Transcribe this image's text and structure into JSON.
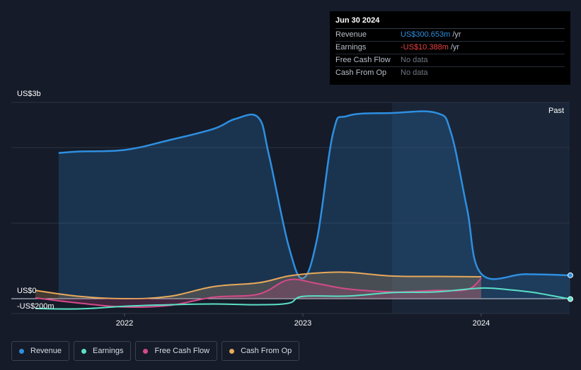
{
  "tooltip": {
    "date": "Jun 30 2024",
    "rows": [
      {
        "label": "Revenue",
        "value": "US$300.653m",
        "unit": "/yr",
        "color": "#2e8fe0"
      },
      {
        "label": "Earnings",
        "value": "-US$10.388m",
        "unit": "/yr",
        "color": "#e8413f"
      },
      {
        "label": "Free Cash Flow",
        "value": "No data",
        "unit": "",
        "color": "#6f7683"
      },
      {
        "label": "Cash From Op",
        "value": "No data",
        "unit": "",
        "color": "#6f7683"
      }
    ]
  },
  "legend": [
    {
      "label": "Revenue",
      "color": "#2e8fe0"
    },
    {
      "label": "Earnings",
      "color": "#5be0c7"
    },
    {
      "label": "Free Cash Flow",
      "color": "#d44a8a"
    },
    {
      "label": "Cash From Op",
      "color": "#e8a95b"
    }
  ],
  "chart_data": {
    "type": "line",
    "y_top_label": "US$3b",
    "y_zero_label": "US$0",
    "y_bottom_label": "-US$200m",
    "past_label": "Past",
    "ylim": [
      -200,
      2900
    ],
    "xlim": [
      2021.5,
      2024.5
    ],
    "past_start": 2023.5,
    "x_ticks": [
      {
        "value": 2022,
        "label": "2022"
      },
      {
        "value": 2023,
        "label": "2023"
      },
      {
        "value": 2024,
        "label": "2024"
      }
    ],
    "gridlines": [
      3000,
      2000,
      1000,
      0
    ],
    "series": [
      {
        "name": "Revenue",
        "color": "#2e8fe0",
        "fill": true,
        "end_marker": true,
        "x": [
          2021.63,
          2021.75,
          2022.0,
          2022.25,
          2022.5,
          2022.62,
          2022.75,
          2022.81,
          2022.92,
          2023.0,
          2023.08,
          2023.17,
          2023.25,
          2023.5,
          2023.75,
          2023.83,
          2023.92,
          2024.0,
          2024.25,
          2024.5
        ],
        "y": [
          1930,
          1950,
          1970,
          2100,
          2250,
          2380,
          2400,
          1900,
          700,
          270,
          800,
          2200,
          2420,
          2460,
          2460,
          2200,
          1200,
          330,
          325,
          310
        ]
      },
      {
        "name": "Earnings",
        "color": "#5be0c7",
        "fill": false,
        "end_marker": true,
        "x": [
          2021.5,
          2021.75,
          2022.0,
          2022.25,
          2022.5,
          2022.75,
          2022.92,
          2023.0,
          2023.25,
          2023.5,
          2023.75,
          2024.0,
          2024.15,
          2024.3,
          2024.5
        ],
        "y": [
          -130,
          -135,
          -100,
          -80,
          -70,
          -80,
          -60,
          30,
          35,
          80,
          90,
          140,
          120,
          80,
          -5
        ]
      },
      {
        "name": "Free Cash Flow",
        "color": "#d44a8a",
        "fill": true,
        "end_marker": false,
        "x": [
          2021.5,
          2021.75,
          2022.0,
          2022.25,
          2022.5,
          2022.75,
          2022.92,
          2023.08,
          2023.25,
          2023.5,
          2023.75,
          2023.92,
          2024.0
        ],
        "y": [
          10,
          -60,
          -110,
          -90,
          20,
          60,
          250,
          200,
          130,
          90,
          110,
          120,
          270
        ]
      },
      {
        "name": "Cash From Op",
        "color": "#e8a95b",
        "fill": true,
        "end_marker": false,
        "x": [
          2021.5,
          2021.75,
          2022.0,
          2022.25,
          2022.5,
          2022.75,
          2022.92,
          2023.08,
          2023.25,
          2023.5,
          2023.75,
          2024.0
        ],
        "y": [
          110,
          30,
          0,
          30,
          160,
          210,
          300,
          340,
          350,
          300,
          295,
          290
        ]
      }
    ]
  }
}
